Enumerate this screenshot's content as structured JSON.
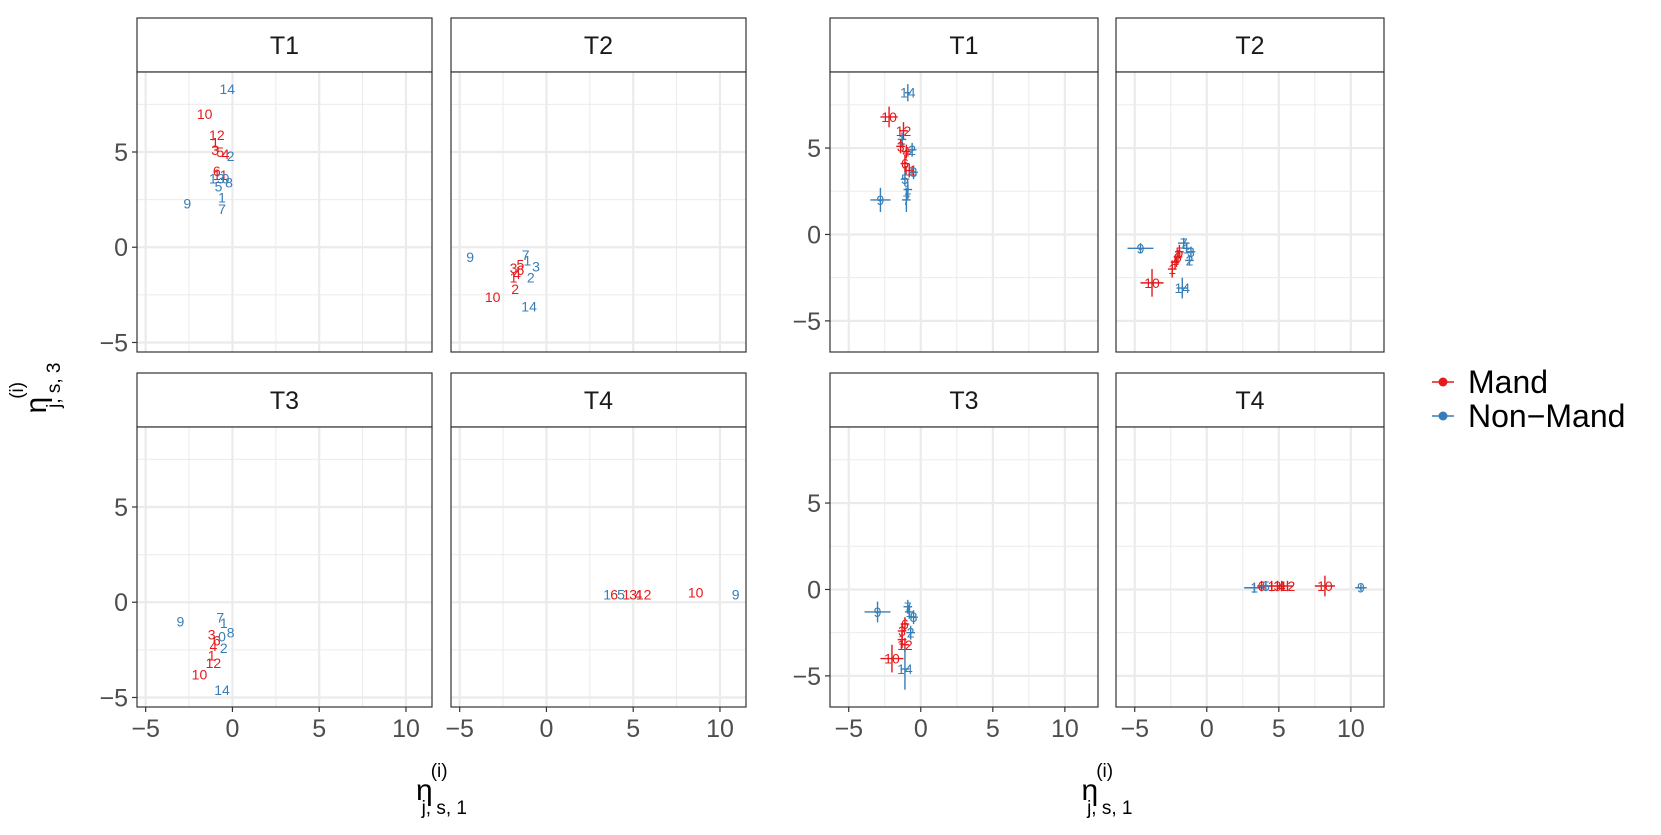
{
  "figure": {
    "y_axis_label_main": "η",
    "y_axis_label_sup": "(i)",
    "y_axis_label_sub": "j, s, 3",
    "x_axis_label_main": "η",
    "x_axis_label_sup": "(i)",
    "x_axis_label_sub": "j, s, 1"
  },
  "legend": {
    "items": [
      {
        "label": "Mand",
        "color": "#E41A1C"
      },
      {
        "label": "Non−Mand",
        "color": "#377EB8"
      }
    ]
  },
  "colors": {
    "mand": "#E41A1C",
    "non_mand": "#377EB8",
    "strip_bg": "#FFFFFF",
    "grid": "#EBEBEB"
  },
  "chart_data": [
    {
      "type": "scatter",
      "variant": "text labels",
      "xlabel": "η(i) j,s,1",
      "ylabel": "η(i) j,s,3",
      "xlim": [
        -5.5,
        11.5
      ],
      "ylim": [
        -5.5,
        9.2
      ],
      "x_ticks": [
        -5,
        0,
        5,
        10
      ],
      "y_ticks": [
        -5,
        0,
        5
      ],
      "x_tick_labels": [
        "−5",
        "0",
        "5",
        "10"
      ],
      "y_tick_labels": [
        "−5",
        "0",
        "5"
      ],
      "panels": [
        {
          "title": "T1",
          "points": [
            {
              "label": "14",
              "group": "Non-Mand",
              "x": -0.3,
              "y": 8.3
            },
            {
              "label": "10",
              "group": "Mand",
              "x": -1.6,
              "y": 7.0
            },
            {
              "label": "12",
              "group": "Mand",
              "x": -0.9,
              "y": 5.9
            },
            {
              "label": "1",
              "group": "Mand",
              "x": -1.0,
              "y": 5.5
            },
            {
              "label": "3",
              "group": "Mand",
              "x": -1.0,
              "y": 5.1
            },
            {
              "label": "5",
              "group": "Mand",
              "x": -0.7,
              "y": 5.0
            },
            {
              "label": "4",
              "group": "Mand",
              "x": -0.4,
              "y": 4.9
            },
            {
              "label": "2",
              "group": "Non-Mand",
              "x": -0.1,
              "y": 4.8
            },
            {
              "label": "6",
              "group": "Mand",
              "x": -0.9,
              "y": 4.0
            },
            {
              "label": "11",
              "group": "Mand",
              "x": -0.7,
              "y": 3.8
            },
            {
              "label": "13",
              "group": "Non-Mand",
              "x": -0.9,
              "y": 3.6
            },
            {
              "label": "0",
              "group": "Non-Mand",
              "x": -0.4,
              "y": 3.6
            },
            {
              "label": "8",
              "group": "Non-Mand",
              "x": -0.2,
              "y": 3.4
            },
            {
              "label": "5",
              "group": "Non-Mand",
              "x": -0.8,
              "y": 3.2
            },
            {
              "label": "1",
              "group": "Non-Mand",
              "x": -0.6,
              "y": 2.6
            },
            {
              "label": "9",
              "group": "Non-Mand",
              "x": -2.6,
              "y": 2.3
            },
            {
              "label": "7",
              "group": "Non-Mand",
              "x": -0.6,
              "y": 2.0
            }
          ]
        },
        {
          "title": "T2",
          "points": [
            {
              "label": "9",
              "group": "Non-Mand",
              "x": -4.4,
              "y": -0.5
            },
            {
              "label": "7",
              "group": "Non-Mand",
              "x": -1.2,
              "y": -0.4
            },
            {
              "label": "1",
              "group": "Non-Mand",
              "x": -1.1,
              "y": -0.7
            },
            {
              "label": "5",
              "group": "Mand",
              "x": -1.5,
              "y": -0.9
            },
            {
              "label": "3",
              "group": "Non-Mand",
              "x": -0.6,
              "y": -1.0
            },
            {
              "label": "3",
              "group": "Mand",
              "x": -1.9,
              "y": -1.1
            },
            {
              "label": "6",
              "group": "Mand",
              "x": -1.5,
              "y": -1.2
            },
            {
              "label": "4",
              "group": "Mand",
              "x": -1.7,
              "y": -1.4
            },
            {
              "label": "2",
              "group": "Non-Mand",
              "x": -0.9,
              "y": -1.6
            },
            {
              "label": "1",
              "group": "Mand",
              "x": -1.9,
              "y": -1.6
            },
            {
              "label": "2",
              "group": "Mand",
              "x": -1.8,
              "y": -2.2
            },
            {
              "label": "10",
              "group": "Mand",
              "x": -3.1,
              "y": -2.6
            },
            {
              "label": "14",
              "group": "Non-Mand",
              "x": -1.0,
              "y": -3.1
            }
          ]
        },
        {
          "title": "T3",
          "points": [
            {
              "label": "9",
              "group": "Non-Mand",
              "x": -3.0,
              "y": -1.0
            },
            {
              "label": "7",
              "group": "Non-Mand",
              "x": -0.7,
              "y": -0.8
            },
            {
              "label": "1",
              "group": "Non-Mand",
              "x": -0.5,
              "y": -1.1
            },
            {
              "label": "8",
              "group": "Non-Mand",
              "x": -0.1,
              "y": -1.6
            },
            {
              "label": "3",
              "group": "Mand",
              "x": -1.2,
              "y": -1.7
            },
            {
              "label": "6",
              "group": "Mand",
              "x": -0.9,
              "y": -2.0
            },
            {
              "label": "0",
              "group": "Non-Mand",
              "x": -0.6,
              "y": -1.8
            },
            {
              "label": "4",
              "group": "Mand",
              "x": -1.1,
              "y": -2.3
            },
            {
              "label": "2",
              "group": "Non-Mand",
              "x": -0.5,
              "y": -2.4
            },
            {
              "label": "1",
              "group": "Mand",
              "x": -1.2,
              "y": -2.8
            },
            {
              "label": "12",
              "group": "Mand",
              "x": -1.1,
              "y": -3.2
            },
            {
              "label": "10",
              "group": "Mand",
              "x": -1.9,
              "y": -3.8
            },
            {
              "label": "14",
              "group": "Non-Mand",
              "x": -0.6,
              "y": -4.6
            }
          ]
        },
        {
          "title": "T4",
          "points": [
            {
              "label": "1",
              "group": "Non-Mand",
              "x": 3.5,
              "y": 0.4
            },
            {
              "label": "6",
              "group": "Mand",
              "x": 3.9,
              "y": 0.4
            },
            {
              "label": "5",
              "group": "Non-Mand",
              "x": 4.3,
              "y": 0.4
            },
            {
              "label": "1",
              "group": "Mand",
              "x": 4.6,
              "y": 0.4
            },
            {
              "label": "3",
              "group": "Mand",
              "x": 5.0,
              "y": 0.4
            },
            {
              "label": "4",
              "group": "Mand",
              "x": 5.3,
              "y": 0.4
            },
            {
              "label": "12",
              "group": "Mand",
              "x": 5.6,
              "y": 0.4
            },
            {
              "label": "10",
              "group": "Mand",
              "x": 8.6,
              "y": 0.5
            },
            {
              "label": "9",
              "group": "Non-Mand",
              "x": 10.9,
              "y": 0.4
            }
          ]
        }
      ]
    },
    {
      "type": "scatter",
      "variant": "text labels with error crosses",
      "xlabel": "η(i) j,s,1",
      "ylabel": "η(i) j,s,3",
      "xlim": [
        -6.3,
        12.3
      ],
      "ylim": [
        -6.8,
        9.4
      ],
      "x_ticks": [
        -5,
        0,
        5,
        10
      ],
      "y_ticks": [
        -5,
        0,
        5
      ],
      "x_tick_labels": [
        "−5",
        "0",
        "5",
        "10"
      ],
      "y_tick_labels": [
        "−5",
        "0",
        "5"
      ],
      "panels": [
        {
          "title": "T1",
          "points": [
            {
              "label": "14",
              "group": "Non-Mand",
              "x": -0.9,
              "y": 8.2,
              "ex": 0.2,
              "ey": 0.5
            },
            {
              "label": "10",
              "group": "Mand",
              "x": -2.2,
              "y": 6.8,
              "ex": 0.6,
              "ey": 0.6
            },
            {
              "label": "12",
              "group": "Mand",
              "x": -1.2,
              "y": 6.0,
              "ex": 0.3,
              "ey": 0.5
            },
            {
              "label": "1",
              "group": "Non-Mand",
              "x": -1.3,
              "y": 5.5,
              "ex": 0.3,
              "ey": 0.4
            },
            {
              "label": "3",
              "group": "Mand",
              "x": -1.4,
              "y": 5.1,
              "ex": 0.3,
              "ey": 0.4
            },
            {
              "label": "2",
              "group": "Non-Mand",
              "x": -0.6,
              "y": 4.9,
              "ex": 0.3,
              "ey": 0.4
            },
            {
              "label": "4",
              "group": "Mand",
              "x": -1.0,
              "y": 4.8,
              "ex": 0.3,
              "ey": 0.4
            },
            {
              "label": "6",
              "group": "Mand",
              "x": -1.1,
              "y": 4.1,
              "ex": 0.3,
              "ey": 0.5
            },
            {
              "label": "11",
              "group": "Mand",
              "x": -0.8,
              "y": 3.7,
              "ex": 0.3,
              "ey": 0.4
            },
            {
              "label": "8",
              "group": "Non-Mand",
              "x": -0.5,
              "y": 3.6,
              "ex": 0.3,
              "ey": 0.4
            },
            {
              "label": "5",
              "group": "Non-Mand",
              "x": -1.1,
              "y": 3.2,
              "ex": 0.3,
              "ey": 0.4
            },
            {
              "label": "1",
              "group": "Non-Mand",
              "x": -0.9,
              "y": 2.6,
              "ex": 0.3,
              "ey": 0.5
            },
            {
              "label": "9",
              "group": "Non-Mand",
              "x": -2.8,
              "y": 2.0,
              "ex": 0.7,
              "ey": 0.7
            },
            {
              "label": "7",
              "group": "Non-Mand",
              "x": -1.0,
              "y": 2.0,
              "ex": 0.3,
              "ey": 0.7
            }
          ]
        },
        {
          "title": "T2",
          "points": [
            {
              "label": "9",
              "group": "Non-Mand",
              "x": -4.6,
              "y": -0.8,
              "ex": 0.9,
              "ey": 0.3
            },
            {
              "label": "7",
              "group": "Non-Mand",
              "x": -1.6,
              "y": -0.5,
              "ex": 0.4,
              "ey": 0.3
            },
            {
              "label": "1",
              "group": "Non-Mand",
              "x": -1.4,
              "y": -0.8,
              "ex": 0.3,
              "ey": 0.3
            },
            {
              "label": "3",
              "group": "Non-Mand",
              "x": -1.1,
              "y": -1.0,
              "ex": 0.3,
              "ey": 0.3
            },
            {
              "label": "5",
              "group": "Mand",
              "x": -1.9,
              "y": -1.0,
              "ex": 0.3,
              "ey": 0.4
            },
            {
              "label": "6",
              "group": "Mand",
              "x": -2.0,
              "y": -1.3,
              "ex": 0.3,
              "ey": 0.4
            },
            {
              "label": "4",
              "group": "Mand",
              "x": -2.2,
              "y": -1.6,
              "ex": 0.3,
              "ey": 0.4
            },
            {
              "label": "2",
              "group": "Non-Mand",
              "x": -1.2,
              "y": -1.5,
              "ex": 0.3,
              "ey": 0.3
            },
            {
              "label": "1",
              "group": "Mand",
              "x": -2.4,
              "y": -2.0,
              "ex": 0.3,
              "ey": 0.5
            },
            {
              "label": "10",
              "group": "Mand",
              "x": -3.8,
              "y": -2.8,
              "ex": 0.8,
              "ey": 0.8
            },
            {
              "label": "14",
              "group": "Non-Mand",
              "x": -1.7,
              "y": -3.1,
              "ex": 0.4,
              "ey": 0.6
            }
          ]
        },
        {
          "title": "T3",
          "points": [
            {
              "label": "9",
              "group": "Non-Mand",
              "x": -3.0,
              "y": -1.3,
              "ex": 0.9,
              "ey": 0.6
            },
            {
              "label": "7",
              "group": "Non-Mand",
              "x": -0.9,
              "y": -1.0,
              "ex": 0.3,
              "ey": 0.4
            },
            {
              "label": "1",
              "group": "Non-Mand",
              "x": -0.8,
              "y": -1.3,
              "ex": 0.3,
              "ey": 0.4
            },
            {
              "label": "8",
              "group": "Non-Mand",
              "x": -0.5,
              "y": -1.6,
              "ex": 0.3,
              "ey": 0.4
            },
            {
              "label": "6",
              "group": "Mand",
              "x": -1.1,
              "y": -2.0,
              "ex": 0.3,
              "ey": 0.4
            },
            {
              "label": "3",
              "group": "Mand",
              "x": -1.3,
              "y": -2.4,
              "ex": 0.3,
              "ey": 0.4
            },
            {
              "label": "2",
              "group": "Non-Mand",
              "x": -0.7,
              "y": -2.5,
              "ex": 0.3,
              "ey": 0.4
            },
            {
              "label": "1",
              "group": "Mand",
              "x": -1.3,
              "y": -2.9,
              "ex": 0.3,
              "ey": 0.5
            },
            {
              "label": "12",
              "group": "Mand",
              "x": -1.1,
              "y": -3.2,
              "ex": 0.3,
              "ey": 0.4
            },
            {
              "label": "10",
              "group": "Mand",
              "x": -2.0,
              "y": -4.0,
              "ex": 0.8,
              "ey": 0.8
            },
            {
              "label": "14",
              "group": "Non-Mand",
              "x": -1.1,
              "y": -4.6,
              "ex": 0.3,
              "ey": 1.2
            }
          ]
        },
        {
          "title": "T4",
          "points": [
            {
              "label": "1",
              "group": "Non-Mand",
              "x": 3.3,
              "y": 0.1,
              "ex": 0.7,
              "ey": 0.3
            },
            {
              "label": "6",
              "group": "Mand",
              "x": 3.8,
              "y": 0.2,
              "ex": 0.3,
              "ey": 0.3
            },
            {
              "label": "5",
              "group": "Non-Mand",
              "x": 4.1,
              "y": 0.2,
              "ex": 0.4,
              "ey": 0.3
            },
            {
              "label": "1",
              "group": "Mand",
              "x": 4.5,
              "y": 0.2,
              "ex": 0.3,
              "ey": 0.3
            },
            {
              "label": "3",
              "group": "Mand",
              "x": 4.9,
              "y": 0.2,
              "ex": 0.3,
              "ey": 0.3
            },
            {
              "label": "4",
              "group": "Mand",
              "x": 5.2,
              "y": 0.2,
              "ex": 0.3,
              "ey": 0.3
            },
            {
              "label": "12",
              "group": "Mand",
              "x": 5.6,
              "y": 0.2,
              "ex": 0.4,
              "ey": 0.3
            },
            {
              "label": "10",
              "group": "Mand",
              "x": 8.2,
              "y": 0.2,
              "ex": 0.7,
              "ey": 0.6
            },
            {
              "label": "9",
              "group": "Non-Mand",
              "x": 10.7,
              "y": 0.1,
              "ex": 0.4,
              "ey": 0.2
            }
          ]
        }
      ]
    }
  ]
}
